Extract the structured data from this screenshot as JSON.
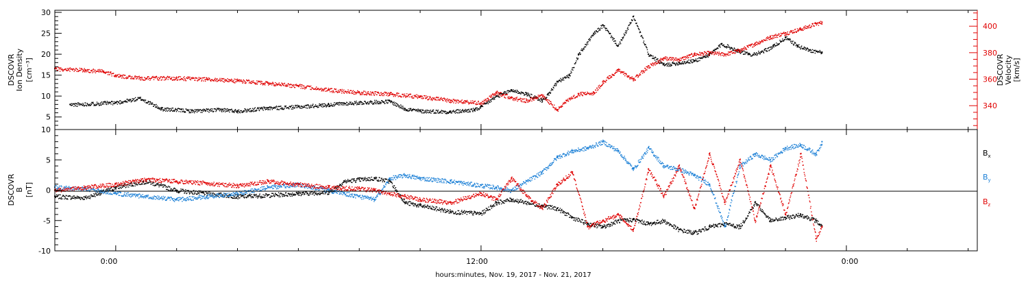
{
  "figure": {
    "xlabel": "hours:minutes, Nov. 19, 2017 - Nov. 21, 2017",
    "x_tick_labels": [
      "0:00",
      "12:00",
      "0:00"
    ]
  },
  "chart_data": [
    {
      "type": "scatter",
      "panel": "top",
      "xlim_hours": [
        -2.0,
        28.3
      ],
      "x_ticks_hours": [
        0,
        12,
        24
      ],
      "left_axis": {
        "label_lines": [
          "DSCOVR",
          "Ion Density",
          "[cm⁻³]"
        ],
        "ylim": [
          2,
          30.5
        ],
        "ticks": [
          5,
          10,
          15,
          20,
          25,
          30
        ],
        "tick_labels": [
          "5",
          "10",
          "15",
          "20",
          "25",
          "30"
        ],
        "color": "#000000"
      },
      "right_axis": {
        "label_lines": [
          "DSCOVR",
          "Velocity",
          "[km/s]"
        ],
        "ylim": [
          322,
          412
        ],
        "ticks": [
          340,
          360,
          380,
          400
        ],
        "tick_labels": [
          "340",
          "360",
          "380",
          "400"
        ],
        "color": "#e00000"
      },
      "series": [
        {
          "axis": "left",
          "color": "#000000",
          "x": [
            -1.5,
            0,
            0.8,
            1.5,
            2.5,
            3.5,
            4,
            5,
            6,
            7,
            7.5,
            8,
            9,
            9.5,
            10,
            11,
            11.8,
            12,
            12.5,
            13,
            13.5,
            14,
            14.2,
            14.5,
            14.9,
            15.2,
            15.7,
            16,
            16.5,
            17,
            17.5,
            18,
            18.5,
            19,
            19.5,
            19.9,
            20.4,
            20.8,
            21.2,
            21.6,
            22,
            22.4,
            22.8,
            23.2
          ],
          "y": [
            8,
            8.5,
            9.5,
            7,
            6.5,
            6.8,
            6.5,
            7.2,
            7.5,
            8,
            8.3,
            8.5,
            8.8,
            7,
            6.5,
            6.3,
            6.8,
            7.5,
            10,
            11.5,
            10.5,
            9,
            10.5,
            13.5,
            15,
            20,
            25,
            27,
            22,
            29,
            20,
            17.5,
            18,
            18.5,
            20,
            22.5,
            21,
            20,
            20.5,
            22,
            24,
            22,
            21,
            20.5
          ]
        },
        {
          "axis": "right",
          "color": "#e00000",
          "x": [
            -2,
            -1,
            -0.4,
            0,
            0.8,
            2,
            3,
            4,
            5,
            6,
            7,
            8,
            9,
            10,
            11,
            11.5,
            12,
            12.5,
            13,
            13.5,
            14,
            14.5,
            14.8,
            15.2,
            15.7,
            16,
            16.5,
            17,
            17.5,
            18,
            18.5,
            19,
            19.5,
            20,
            20.5,
            21,
            21.5,
            22,
            22.5,
            23,
            23.2
          ],
          "y": [
            368,
            367,
            366,
            363,
            361,
            361,
            360,
            359,
            357,
            355,
            352,
            350,
            349,
            347,
            344,
            343,
            342,
            350,
            346,
            344,
            348,
            337,
            344,
            349,
            350,
            358,
            367,
            360,
            370,
            376,
            375,
            379,
            380,
            379,
            382,
            387,
            392,
            395,
            398,
            402,
            403
          ]
        }
      ]
    },
    {
      "type": "scatter",
      "panel": "bottom",
      "xlim_hours": [
        -2.0,
        28.3
      ],
      "x_ticks_hours": [
        0,
        12,
        24
      ],
      "y_axis": {
        "label_lines": [
          "DSCOVR",
          "B",
          "[nT]"
        ],
        "ylim": [
          -10,
          10
        ],
        "ticks": [
          -10,
          -5,
          0,
          5,
          10
        ],
        "tick_labels": [
          "-10",
          "-5",
          "0",
          "5",
          "10"
        ]
      },
      "zero_line": 0,
      "series": [
        {
          "name": "B",
          "subscript": "x",
          "color": "#000000",
          "x": [
            -2,
            -1,
            0,
            1,
            2,
            3,
            4,
            5,
            6,
            7,
            7.5,
            8,
            8.5,
            9,
            9.5,
            10,
            11,
            12,
            12.5,
            13,
            14,
            14.5,
            15,
            15.5,
            16,
            16.5,
            17,
            17.5,
            18,
            18.5,
            19,
            19.5,
            20,
            20.5,
            21,
            21.5,
            22,
            22.5,
            23,
            23.2
          ],
          "y": [
            -1,
            -1.2,
            0.5,
            1.5,
            0,
            -0.5,
            -1,
            -0.8,
            -0.5,
            -0.3,
            1.5,
            1.8,
            2,
            1.5,
            -2,
            -2.5,
            -3.5,
            -3.8,
            -2,
            -1.5,
            -2.5,
            -3,
            -4.5,
            -5.5,
            -6,
            -5,
            -4.8,
            -5.5,
            -5,
            -6.5,
            -7,
            -6,
            -5.5,
            -6,
            -2,
            -5,
            -4.5,
            -4,
            -5,
            -6
          ]
        },
        {
          "name": "B",
          "subscript": "y",
          "color": "#1a7fd6",
          "x": [
            -2,
            -1,
            0,
            1,
            2,
            3,
            4,
            5,
            6,
            7,
            7.5,
            8,
            8.5,
            9,
            9.5,
            10,
            11,
            12,
            12.5,
            13,
            13.5,
            14,
            14.5,
            15,
            15.5,
            16,
            16.5,
            17,
            17.5,
            18,
            18.5,
            19,
            19.5,
            20,
            20.5,
            21,
            21.5,
            22,
            22.5,
            23,
            23.2
          ],
          "y": [
            0.5,
            0.3,
            -0.5,
            -1,
            -1.5,
            -1,
            -0.5,
            0.5,
            1,
            0,
            -0.5,
            -1,
            -1.5,
            2,
            2.5,
            2,
            1.5,
            0.8,
            0.5,
            0,
            1.5,
            3,
            5.5,
            6.5,
            7,
            8,
            6.5,
            3.5,
            7,
            4,
            3.5,
            2.5,
            1,
            -6,
            4,
            6,
            5,
            7,
            7.5,
            6,
            8
          ]
        },
        {
          "name": "B",
          "subscript": "z",
          "color": "#e00000",
          "x": [
            -2,
            -1,
            0,
            1,
            2,
            3,
            4,
            5,
            6,
            7,
            8,
            8.5,
            9,
            9.5,
            10,
            11,
            12,
            12.5,
            13,
            13.5,
            14,
            14.5,
            15,
            15.5,
            16,
            16.5,
            17,
            17.5,
            18,
            18.5,
            19,
            19.5,
            20,
            20.5,
            21,
            21.5,
            22,
            22.5,
            23,
            23.2
          ],
          "y": [
            0,
            0.5,
            1,
            1.8,
            1.5,
            1.2,
            0.8,
            1.5,
            1,
            0.5,
            0.3,
            0,
            -0.5,
            -1,
            -1.5,
            -2,
            -0.5,
            -1.5,
            2,
            -1,
            -3,
            1,
            3,
            -6,
            -5,
            -4,
            -6.5,
            3.5,
            -1,
            4,
            -3,
            6,
            -2,
            5,
            -5,
            4,
            -4,
            6,
            -8,
            -6
          ]
        }
      ]
    }
  ]
}
